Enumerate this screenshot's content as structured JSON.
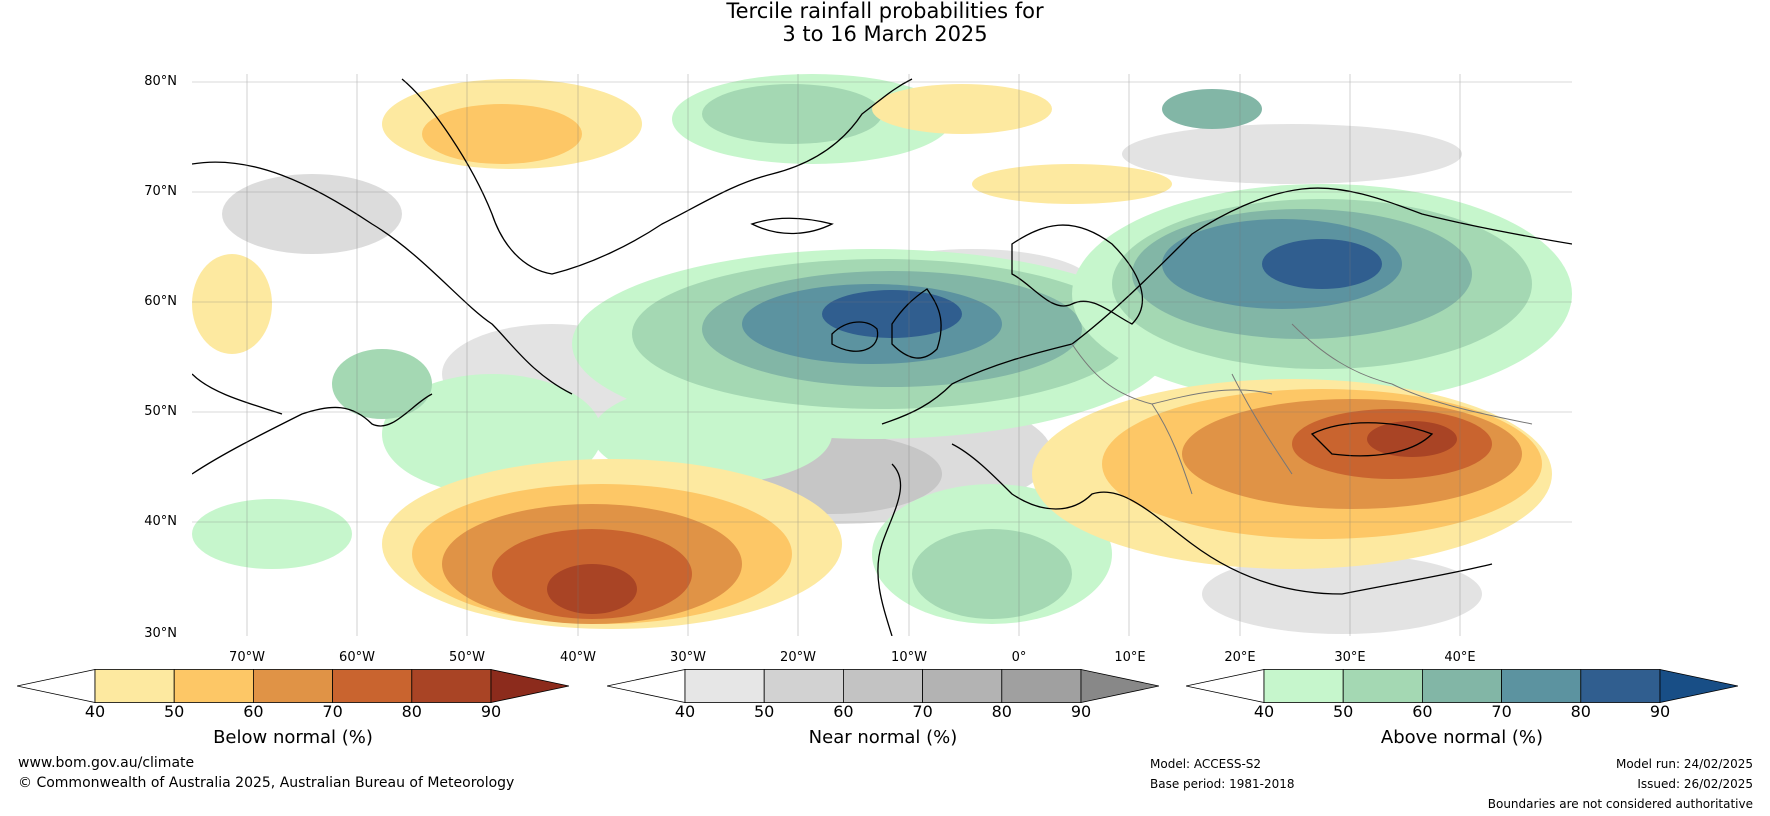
{
  "title": {
    "line1": "Tercile rainfall probabilities for",
    "line2": "3 to 16 March 2025"
  },
  "lat_labels": [
    "80°N",
    "70°N",
    "60°N",
    "50°N",
    "40°N",
    "30°N"
  ],
  "lon_labels": [
    "70°W",
    "60°W",
    "50°W",
    "40°W",
    "30°W",
    "20°W",
    "10°W",
    "0°",
    "10°E",
    "20°E",
    "30°E",
    "40°E"
  ],
  "colorbars": [
    {
      "label": "Below normal (%)",
      "ticks": [
        "40",
        "50",
        "60",
        "70",
        "80",
        "90"
      ],
      "colors": [
        "#ffffff",
        "#fde9a0",
        "#fdc766",
        "#e09346",
        "#c9642f",
        "#a94425",
        "#8c2b1c"
      ]
    },
    {
      "label": "Near normal (%)",
      "ticks": [
        "40",
        "50",
        "60",
        "70",
        "80",
        "90"
      ],
      "colors": [
        "#ffffff",
        "#e6e6e6",
        "#d2d2d2",
        "#c3c3c3",
        "#b3b3b3",
        "#a0a0a0",
        "#888888"
      ]
    },
    {
      "label": "Above normal (%)",
      "ticks": [
        "40",
        "50",
        "60",
        "70",
        "80",
        "90"
      ],
      "colors": [
        "#ffffff",
        "#c6f6cc",
        "#a4d8b3",
        "#82b6a6",
        "#5c93a0",
        "#305e8f",
        "#184e86"
      ]
    }
  ],
  "footer": {
    "website": "www.bom.gov.au/climate",
    "copyright": "© Commonwealth of Australia 2025, Australian Bureau of Meteorology",
    "model": "Model: ACCESS-S2",
    "base_period": "Base period: 1981-2018",
    "model_run": "Model run: 24/02/2025",
    "issued": "Issued: 26/02/2025",
    "disclaimer": "Boundaries are not considered authoritative"
  }
}
